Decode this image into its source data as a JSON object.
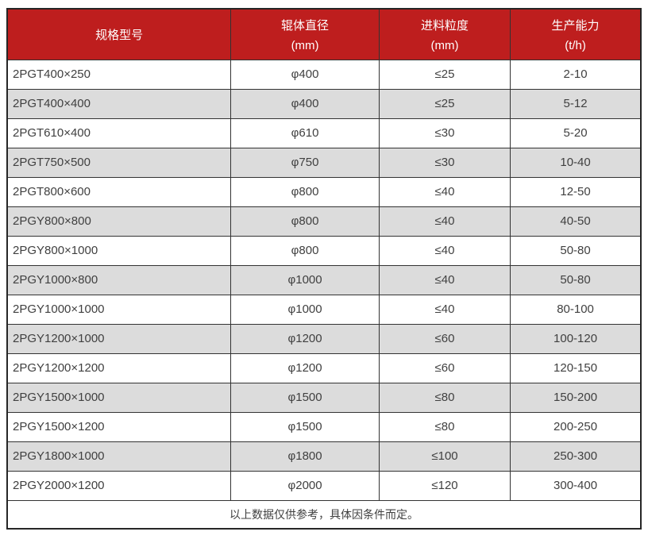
{
  "colors": {
    "header_bg": "#be1e1e",
    "header_text": "#ffffff",
    "row_alt_bg": "#dcdcdc",
    "inner_border": "#333333",
    "outer_border": "#262626",
    "body_text": "#404040"
  },
  "table": {
    "columns": [
      {
        "line1": "规格型号",
        "line2": ""
      },
      {
        "line1": "辊体直径",
        "line2": "(mm)"
      },
      {
        "line1": "进料粒度",
        "line2": "(mm)"
      },
      {
        "line1": "生产能力",
        "line2": "(t/h)"
      }
    ],
    "rows": [
      [
        "2PGT400×250",
        "φ400",
        "≤25",
        "2-10"
      ],
      [
        "2PGT400×400",
        "φ400",
        "≤25",
        "5-12"
      ],
      [
        "2PGT610×400",
        "φ610",
        "≤30",
        "5-20"
      ],
      [
        "2PGT750×500",
        "φ750",
        "≤30",
        "10-40"
      ],
      [
        "2PGT800×600",
        "φ800",
        "≤40",
        "12-50"
      ],
      [
        "2PGY800×800",
        "φ800",
        "≤40",
        "40-50"
      ],
      [
        "2PGY800×1000",
        "φ800",
        "≤40",
        "50-80"
      ],
      [
        "2PGY1000×800",
        "φ1000",
        "≤40",
        "50-80"
      ],
      [
        "2PGY1000×1000",
        "φ1000",
        "≤40",
        "80-100"
      ],
      [
        "2PGY1200×1000",
        "φ1200",
        "≤60",
        "100-120"
      ],
      [
        "2PGY1200×1200",
        "φ1200",
        "≤60",
        "120-150"
      ],
      [
        "2PGY1500×1000",
        "φ1500",
        "≤80",
        "150-200"
      ],
      [
        "2PGY1500×1200",
        "φ1500",
        "≤80",
        "200-250"
      ],
      [
        "2PGY1800×1000",
        "φ1800",
        "≤100",
        "250-300"
      ],
      [
        "2PGY2000×1200",
        "φ2000",
        "≤120",
        "300-400"
      ]
    ],
    "footnote": "以上数据仅供参考，具体因条件而定。"
  }
}
